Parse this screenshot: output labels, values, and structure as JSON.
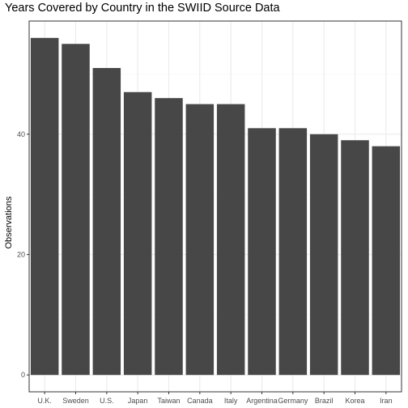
{
  "chart_data": {
    "type": "bar",
    "title": "Years Covered by Country in the SWIID Source Data",
    "xlabel": "",
    "ylabel": "Observations",
    "categories": [
      "U.K.",
      "Sweden",
      "U.S.",
      "Japan",
      "Taiwan",
      "Canada",
      "Italy",
      "Argentina",
      "Germany",
      "Brazil",
      "Korea",
      "Iran"
    ],
    "values": [
      56,
      55,
      51,
      47,
      46,
      45,
      45,
      41,
      41,
      40,
      39,
      38
    ],
    "ylim": [
      -2.8,
      58.8
    ],
    "yticks": [
      0,
      20,
      40
    ],
    "grid": true,
    "colors": {
      "bar": "#474747",
      "panel_border": "#333333",
      "grid_major": "#ebebeb",
      "grid_minor": "#f5f5f5"
    }
  }
}
